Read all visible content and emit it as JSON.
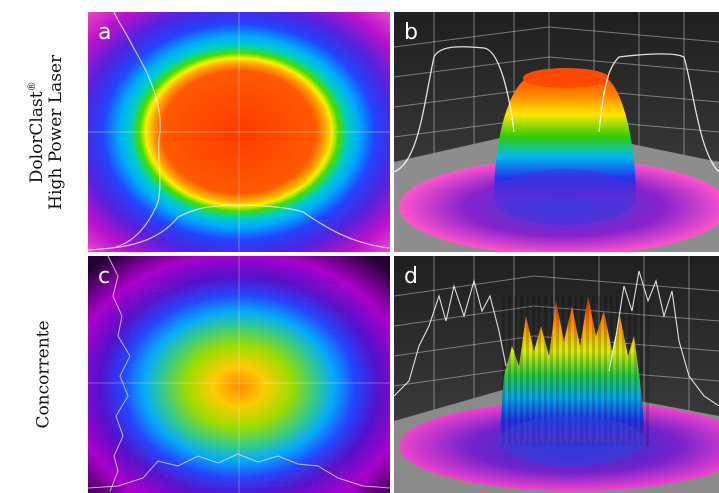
{
  "rows": [
    {
      "label_line1": "DolorClast",
      "label_sup": "®",
      "label_line2": "High Power Laser"
    },
    {
      "label_line1": "Concorrente",
      "label_sup": "",
      "label_line2": ""
    }
  ],
  "panels": [
    {
      "id": "a",
      "label": "a",
      "kind": "beam-profile-2d",
      "quality": "smooth top-hat"
    },
    {
      "id": "b",
      "label": "b",
      "kind": "beam-profile-3d",
      "quality": "smooth top-hat"
    },
    {
      "id": "c",
      "label": "c",
      "kind": "beam-profile-2d",
      "quality": "speckled"
    },
    {
      "id": "d",
      "label": "d",
      "kind": "beam-profile-3d",
      "quality": "speckled"
    }
  ],
  "colors": {
    "background": "#ffffff",
    "panel_label": "#ffffff",
    "rainbow": [
      "#ff3300",
      "#ff9900",
      "#ffee00",
      "#33dd00",
      "#00ccff",
      "#0044ff",
      "#6600cc",
      "#cc00cc",
      "#ff55cc"
    ]
  }
}
